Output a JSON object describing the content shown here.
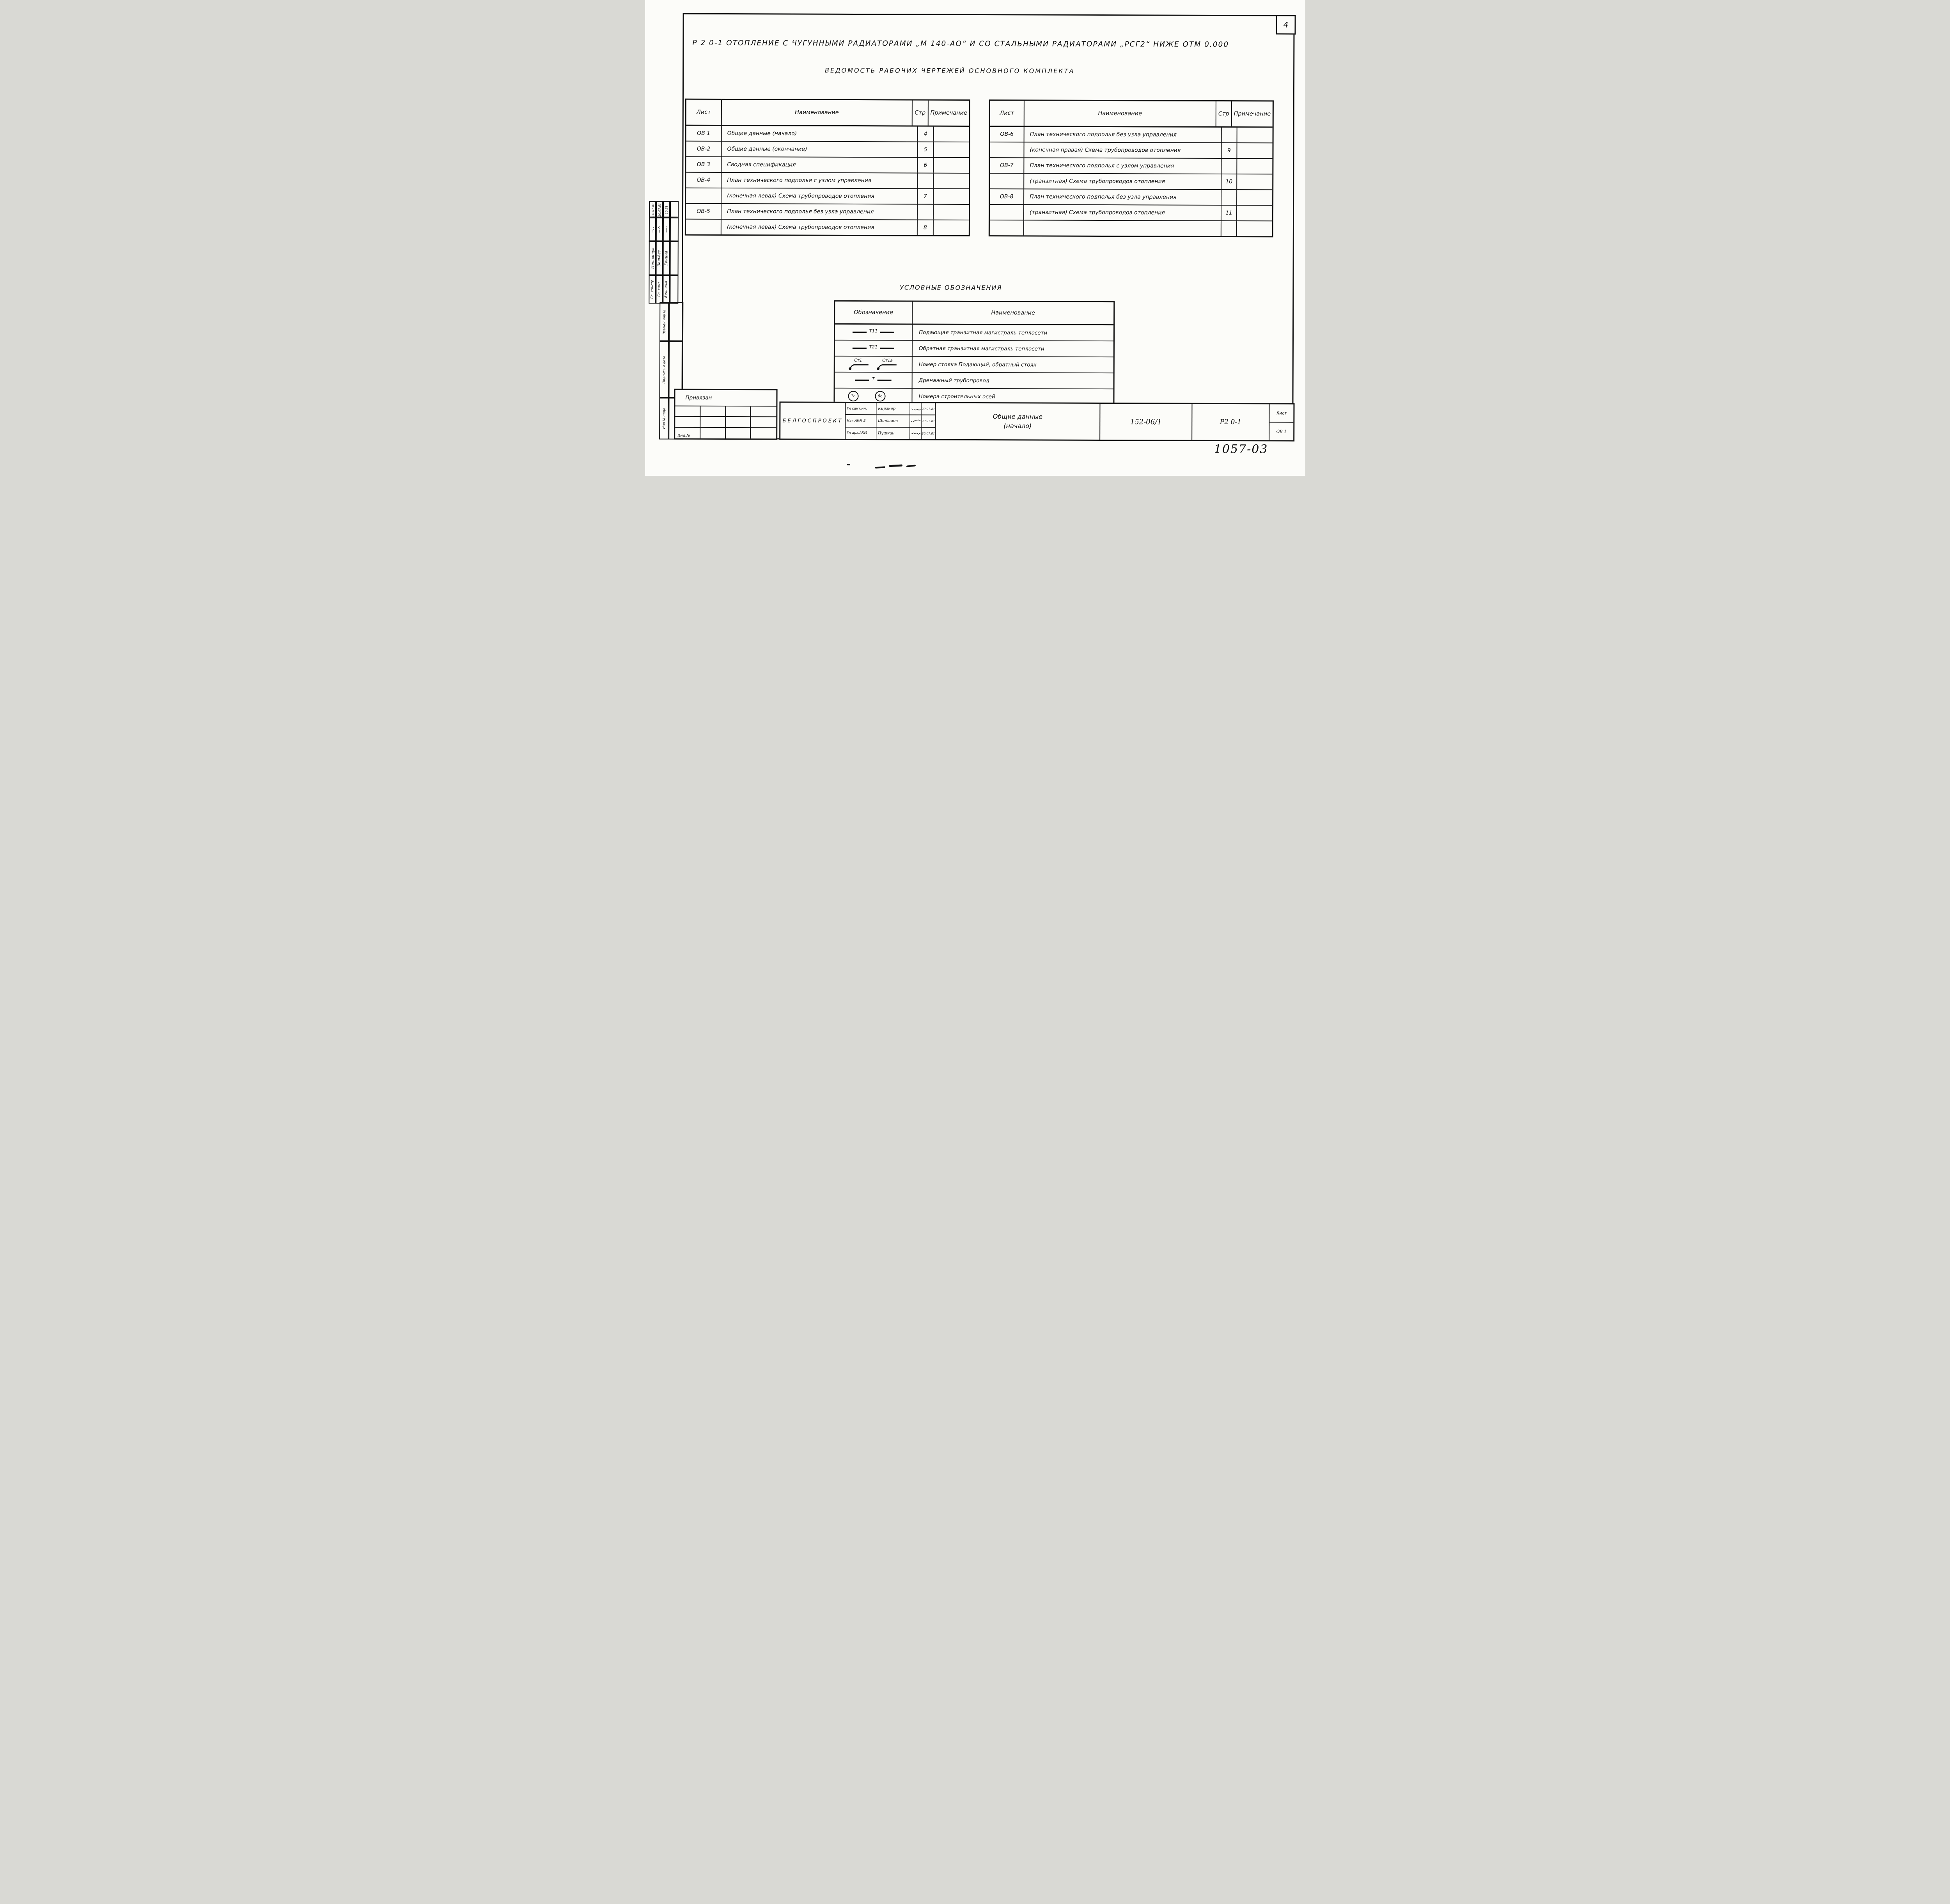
{
  "page": {
    "corner_sheet_number": "4",
    "doc_stamp_handwritten": "1057-03"
  },
  "header": {
    "title_line1": "Р 2 0-1  ОТОПЛЕНИЕ  С ЧУГУННЫМИ  РАДИАТОРАМИ „М 140-АО“ И  СО СТАЛЬНЫМИ  РАДИАТОРАМИ  „РСГ2“ НИЖЕ ОТМ  0.000",
    "title_line2": "ВЕДОМОСТЬ  РАБОЧИХ  ЧЕРТЕЖЕЙ  ОСНОВНОГО  КОМПЛЕКТА"
  },
  "sheet_tables": {
    "headers": {
      "list": "Лист",
      "name": "Наименование",
      "page": "Стр",
      "note": "Примечание"
    },
    "left_rows": [
      {
        "list": "ОВ 1",
        "name": "Общие данные (начало)",
        "page": "4",
        "note": ""
      },
      {
        "list": "ОВ-2",
        "name": "Общие данные (окончание)",
        "page": "5",
        "note": ""
      },
      {
        "list": "ОВ 3",
        "name": "Сводная спецификация",
        "page": "6",
        "note": ""
      },
      {
        "list": "ОВ-4",
        "name": "План технического подполья с узлом управления",
        "page": "",
        "note": ""
      },
      {
        "list": "",
        "name": "(конечная левая)  Схема трубопроводов отопления",
        "page": "7",
        "note": ""
      },
      {
        "list": "ОВ-5",
        "name": "План технического подполья без узла управления",
        "page": "",
        "note": ""
      },
      {
        "list": "",
        "name": "(конечная левая)  Схема трубопроводов отопления",
        "page": "8",
        "note": ""
      }
    ],
    "right_rows": [
      {
        "list": "ОВ-6",
        "name": "План технического подполья без узла управления",
        "page": "",
        "note": ""
      },
      {
        "list": "",
        "name": "(конечная правая) Схема трубопроводов отопления",
        "page": "9",
        "note": ""
      },
      {
        "list": "ОВ-7",
        "name": "План технического подполья с узлом управления",
        "page": "",
        "note": ""
      },
      {
        "list": "",
        "name": "(транзитная) Схема трубопроводов отопления",
        "page": "10",
        "note": ""
      },
      {
        "list": "ОВ-8",
        "name": "План технического подполья без узла управления",
        "page": "",
        "note": ""
      },
      {
        "list": "",
        "name": "(транзитная) Схема трубопроводов отопления",
        "page": "11",
        "note": ""
      },
      {
        "list": "",
        "name": "",
        "page": "",
        "note": ""
      }
    ]
  },
  "legend": {
    "title": "УСЛОВНЫЕ  ОБОЗНАЧЕНИЯ",
    "col_symbol": "Обозначение",
    "col_name": "Наименование",
    "rows": [
      {
        "type": "pipe",
        "label": "Т11",
        "name": "Подающая транзитная магистраль теплосети"
      },
      {
        "type": "pipe",
        "label": "Т21",
        "name": "Обратная транзитная магистраль теплосети"
      },
      {
        "type": "risers",
        "labels": [
          "Ст1",
          "Ст1а"
        ],
        "name": "Номер стояка Подающий, обратный стояк"
      },
      {
        "type": "pipe",
        "label": "Т",
        "name": "Дренажный трубопровод"
      },
      {
        "type": "axes",
        "labels": [
          "1с",
          "8с"
        ],
        "name": "Номера строительных осей"
      }
    ]
  },
  "approvals_sidebar": {
    "people": [
      {
        "role": "Гл. констр",
        "name": "Петрачук",
        "date": "20.07.81"
      },
      {
        "role": "Гл. сант",
        "name": "Зельдес",
        "date": "20.07.81"
      },
      {
        "role": "Вед. инж",
        "name": "Генина",
        "date": "10.81"
      }
    ],
    "labels": [
      "Взамен инв №",
      "Подпись и дата",
      "Инв № подл"
    ]
  },
  "binding_box": {
    "header": "Привязан",
    "corner_label": "Инд.№"
  },
  "stamp": {
    "organization": "БЕЛГОСПРОЕКТ",
    "signers": [
      {
        "role": "Гл сант.ин.",
        "name": "Кирзнер",
        "date": "20.07.81"
      },
      {
        "role": "Нач АКМ 2",
        "name": "Шаталов",
        "date": "20.07.81"
      },
      {
        "role": "Гл арх.АКМ",
        "name": "Пушкин",
        "date": "20.07.81"
      }
    ],
    "doc_title_line1": "Общие данные",
    "doc_title_line2": "(начало)",
    "project_code": "152-06/1",
    "series_code": "Р2 0-1",
    "sheet_label": "Лист",
    "sheet_value": "ОВ 1"
  }
}
